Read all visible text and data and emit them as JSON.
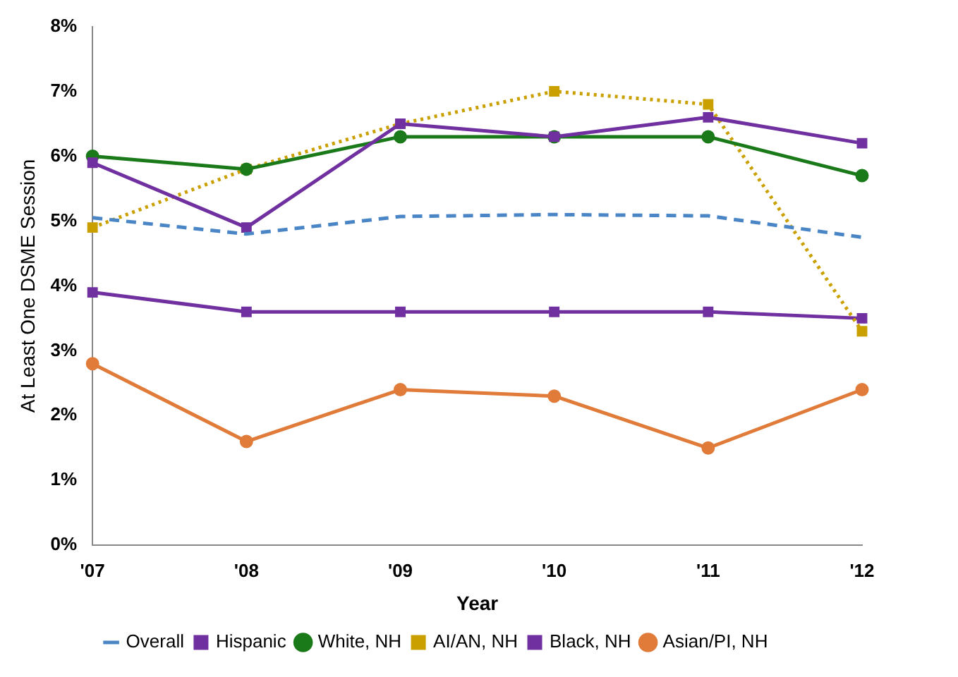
{
  "chart_data": {
    "type": "line",
    "xlabel": "Year",
    "ylabel": "At Least One DSME Session",
    "categories": [
      "'07",
      "'08",
      "'09",
      "'10",
      "'11",
      "'12"
    ],
    "ylim": [
      0,
      8
    ],
    "yticks": [
      {
        "value": 0,
        "label": "0%"
      },
      {
        "value": 1,
        "label": "1%"
      },
      {
        "value": 2,
        "label": "2%"
      },
      {
        "value": 3,
        "label": "3%"
      },
      {
        "value": 4,
        "label": "4%"
      },
      {
        "value": 5,
        "label": "5%"
      },
      {
        "value": 6,
        "label": "6%"
      },
      {
        "value": 7,
        "label": "7%"
      },
      {
        "value": 8,
        "label": "8%"
      }
    ],
    "grid": false,
    "legend": "bottom",
    "series": [
      {
        "name": "Overall",
        "color": "#4a86c6",
        "values": [
          5.05,
          4.8,
          5.07,
          5.1,
          5.08,
          4.75
        ],
        "marker": "none",
        "line_style": "dashed"
      },
      {
        "name": "Hispanic",
        "color": "#7030a0",
        "values": [
          5.9,
          4.9,
          6.5,
          6.3,
          6.6,
          6.2
        ],
        "marker": "square",
        "line_style": "solid"
      },
      {
        "name": "White, NH",
        "color": "#1a7a1a",
        "values": [
          6.0,
          5.8,
          6.3,
          6.3,
          6.3,
          5.7
        ],
        "marker": "circle",
        "line_style": "solid"
      },
      {
        "name": "AI/AN, NH",
        "color": "#c9a000",
        "values": [
          4.9,
          5.8,
          6.5,
          7.0,
          6.8,
          3.3
        ],
        "marker": "square",
        "line_style": "dotted"
      },
      {
        "name": "Black, NH",
        "color": "#7030a0",
        "values": [
          3.9,
          3.6,
          3.6,
          3.6,
          3.6,
          3.5
        ],
        "marker": "square",
        "line_style": "solid"
      },
      {
        "name": "Asian/PI, NH",
        "color": "#e07b39",
        "values": [
          2.8,
          1.6,
          2.4,
          2.3,
          1.5,
          2.4
        ],
        "marker": "circle",
        "line_style": "solid"
      }
    ]
  }
}
